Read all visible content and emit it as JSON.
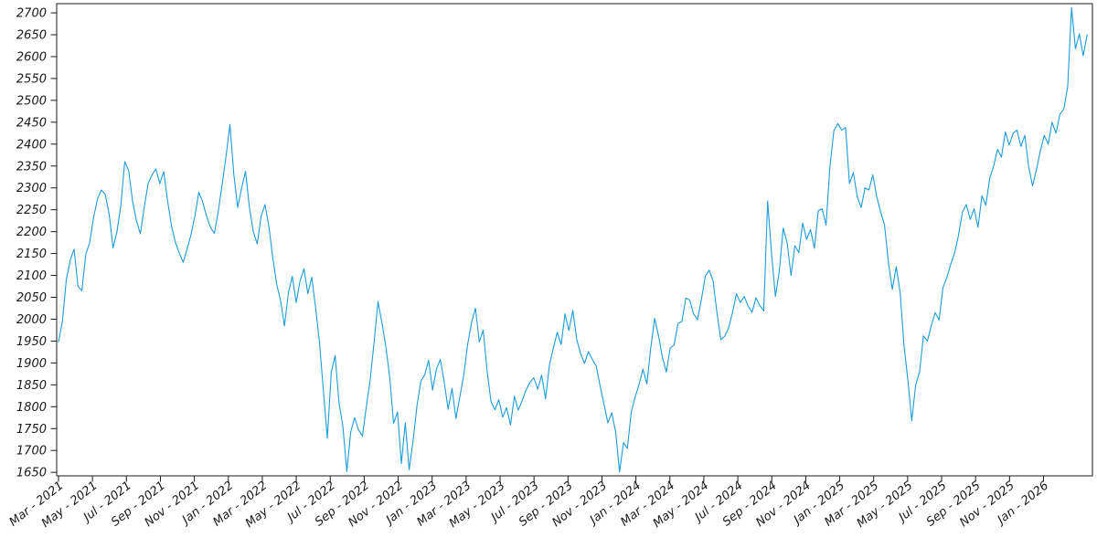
{
  "figure": {
    "background": "#ffffff",
    "line_color": "#1d9bd8",
    "spine_color": "#1a1a1a",
    "tick_label_color": "#1a1a1a"
  },
  "chart_data": {
    "type": "line",
    "title": "",
    "xlabel": "",
    "ylabel": "",
    "grid": false,
    "legend": null,
    "x_tick_labels": [
      "Mar - 2021",
      "May - 2021",
      "Jul - 2021",
      "Sep - 2021",
      "Nov - 2021",
      "Jan - 2022",
      "Mar - 2022",
      "May - 2022",
      "Jul - 2022",
      "Sep - 2022",
      "Nov - 2022",
      "Jan - 2023",
      "Mar - 2023",
      "May - 2023",
      "Jul - 2023",
      "Sep - 2023",
      "Nov - 2023",
      "Jan - 2024",
      "Mar - 2024",
      "May - 2024",
      "Jul - 2024",
      "Sep - 2024",
      "Nov - 2024",
      "Jan - 2025",
      "Mar - 2025",
      "May - 2025",
      "Jul - 2025",
      "Sep - 2025",
      "Nov - 2025",
      "Jan - 2026"
    ],
    "y_ticks": [
      1650,
      1700,
      1750,
      1800,
      1850,
      1900,
      1950,
      2000,
      2050,
      2100,
      2150,
      2200,
      2250,
      2300,
      2350,
      2400,
      2450,
      2500,
      2550,
      2600,
      2650,
      2700
    ],
    "ylim": [
      1642,
      2721
    ],
    "x_range_description": "Mar 2021 to Mar 2026, one point per week",
    "series": [
      {
        "values": [
          1948,
          1995,
          2090,
          2135,
          2160,
          2075,
          2065,
          2148,
          2175,
          2232,
          2275,
          2295,
          2285,
          2240,
          2163,
          2200,
          2260,
          2360,
          2340,
          2270,
          2225,
          2195,
          2255,
          2310,
          2330,
          2343,
          2310,
          2337,
          2270,
          2213,
          2175,
          2151,
          2130,
          2160,
          2193,
          2235,
          2290,
          2268,
          2235,
          2210,
          2196,
          2246,
          2308,
          2372,
          2445,
          2330,
          2255,
          2300,
          2338,
          2255,
          2200,
          2172,
          2235,
          2262,
          2212,
          2140,
          2080,
          2042,
          1985,
          2060,
          2098,
          2038,
          2088,
          2115,
          2058,
          2096,
          2025,
          1945,
          1835,
          1728,
          1878,
          1917,
          1808,
          1754,
          1652,
          1742,
          1775,
          1747,
          1733,
          1800,
          1862,
          1948,
          2040,
          1992,
          1938,
          1868,
          1762,
          1788,
          1670,
          1763,
          1656,
          1722,
          1802,
          1858,
          1873,
          1906,
          1838,
          1886,
          1908,
          1856,
          1794,
          1842,
          1773,
          1822,
          1872,
          1942,
          1992,
          2025,
          1948,
          1975,
          1882,
          1812,
          1793,
          1816,
          1776,
          1798,
          1758,
          1824,
          1792,
          1814,
          1838,
          1856,
          1866,
          1840,
          1872,
          1818,
          1895,
          1934,
          1970,
          1942,
          2012,
          1974,
          2020,
          1954,
          1921,
          1899,
          1926,
          1908,
          1893,
          1848,
          1806,
          1763,
          1786,
          1742,
          1651,
          1718,
          1705,
          1788,
          1822,
          1851,
          1886,
          1852,
          1934,
          2002,
          1962,
          1913,
          1879,
          1934,
          1941,
          1990,
          1995,
          2048,
          2044,
          2012,
          1999,
          2045,
          2098,
          2112,
          2088,
          2014,
          1953,
          1961,
          1980,
          2016,
          2058,
          2038,
          2052,
          2030,
          2016,
          2049,
          2031,
          2019,
          2270,
          2150,
          2052,
          2110,
          2208,
          2175,
          2100,
          2168,
          2152,
          2220,
          2182,
          2205,
          2162,
          2248,
          2252,
          2215,
          2350,
          2430,
          2447,
          2432,
          2438,
          2310,
          2335,
          2280,
          2255,
          2300,
          2295,
          2330,
          2280,
          2245,
          2215,
          2130,
          2068,
          2120,
          2062,
          1940,
          1860,
          1768,
          1850,
          1880,
          1962,
          1950,
          1985,
          2015,
          1998,
          2072,
          2095,
          2126,
          2152,
          2192,
          2245,
          2262,
          2228,
          2252,
          2210,
          2282,
          2260,
          2322,
          2350,
          2388,
          2370,
          2428,
          2398,
          2425,
          2432,
          2395,
          2420,
          2348,
          2305,
          2342,
          2385,
          2420,
          2400,
          2450,
          2425,
          2468,
          2480,
          2530,
          2712,
          2618,
          2652,
          2602,
          2650
        ]
      }
    ]
  }
}
